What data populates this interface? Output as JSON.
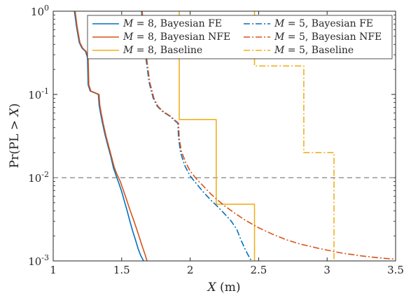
{
  "chart_data": {
    "type": "line",
    "xlabel": "X (m)",
    "ylabel": "Pr(PL > X)",
    "xlim": [
      1,
      3.5
    ],
    "ylim": [
      0.001,
      1
    ],
    "yscale": "log",
    "xticks": [
      1,
      1.5,
      2,
      2.5,
      3,
      3.5
    ],
    "xtick_labels": [
      "1",
      "1.5",
      "2",
      "2.5",
      "3",
      "3.5"
    ],
    "yticks": [
      0.001,
      0.01,
      0.1,
      1
    ],
    "ytick_labels": [
      {
        "base": "10",
        "exp": "-3"
      },
      {
        "base": "10",
        "exp": "-2"
      },
      {
        "base": "10",
        "exp": "-1"
      },
      {
        "base": "10",
        "exp": "0"
      }
    ],
    "reference_line": {
      "y": 0.01,
      "style": "dashed",
      "color": "#808080"
    },
    "legend": {
      "placement": "top-right",
      "columns": 2
    },
    "series": [
      {
        "name": "M = 8, Bayesian FE",
        "math": "M",
        "rest": " = 8, Bayesian FE",
        "color": "#0072BD",
        "dash": "solid",
        "x": [
          1.155,
          1.17,
          1.19,
          1.21,
          1.235,
          1.25,
          1.255,
          1.27,
          1.3,
          1.33,
          1.335,
          1.345,
          1.36,
          1.38,
          1.4,
          1.42,
          1.44,
          1.46,
          1.48,
          1.5,
          1.52,
          1.54,
          1.56,
          1.58,
          1.6,
          1.62,
          1.64,
          1.66
        ],
        "y": [
          1.0,
          0.65,
          0.42,
          0.36,
          0.33,
          0.28,
          0.13,
          0.11,
          0.105,
          0.1,
          0.075,
          0.06,
          0.045,
          0.032,
          0.024,
          0.018,
          0.013,
          0.0105,
          0.0085,
          0.0068,
          0.0052,
          0.004,
          0.003,
          0.0023,
          0.0018,
          0.0014,
          0.00115,
          0.001
        ]
      },
      {
        "name": "M = 8, Bayesian NFE",
        "math": "M",
        "rest": " = 8, Bayesian NFE",
        "color": "#D95319",
        "dash": "solid",
        "x": [
          1.16,
          1.175,
          1.195,
          1.215,
          1.24,
          1.255,
          1.26,
          1.275,
          1.305,
          1.335,
          1.34,
          1.35,
          1.365,
          1.385,
          1.405,
          1.425,
          1.445,
          1.465,
          1.49,
          1.51,
          1.53,
          1.55,
          1.57,
          1.59,
          1.61,
          1.63,
          1.65,
          1.67,
          1.685
        ],
        "y": [
          1.0,
          0.65,
          0.42,
          0.36,
          0.33,
          0.28,
          0.13,
          0.11,
          0.105,
          0.1,
          0.075,
          0.06,
          0.045,
          0.032,
          0.024,
          0.018,
          0.0135,
          0.011,
          0.009,
          0.0072,
          0.0058,
          0.0046,
          0.0037,
          0.003,
          0.0024,
          0.0019,
          0.0015,
          0.0012,
          0.001
        ]
      },
      {
        "name": "M = 8, Baseline",
        "math": "M",
        "rest": " = 8, Baseline",
        "color": "#EDB120",
        "dash": "solid",
        "x": [
          1.92,
          1.92,
          2.19,
          2.19,
          2.47,
          2.47
        ],
        "y": [
          1.0,
          0.05,
          0.05,
          0.0048,
          0.0048,
          0.001
        ]
      },
      {
        "name": "M = 5, Bayesian FE",
        "math": "M",
        "rest": " = 5, Bayesian FE",
        "color": "#0072BD",
        "dash": "dashdot",
        "x": [
          1.645,
          1.66,
          1.68,
          1.7,
          1.73,
          1.76,
          1.8,
          1.85,
          1.89,
          1.91,
          1.915,
          1.93,
          1.96,
          2.0,
          2.05,
          2.1,
          2.15,
          2.2,
          2.25,
          2.3,
          2.34,
          2.37,
          2.4,
          2.42,
          2.44,
          2.45
        ],
        "y": [
          1.0,
          0.5,
          0.25,
          0.14,
          0.09,
          0.072,
          0.062,
          0.055,
          0.048,
          0.045,
          0.03,
          0.02,
          0.014,
          0.0105,
          0.0083,
          0.0066,
          0.0054,
          0.0045,
          0.0037,
          0.003,
          0.0024,
          0.0018,
          0.0014,
          0.0012,
          0.00105,
          0.001
        ]
      },
      {
        "name": "M = 5, Bayesian NFE",
        "math": "M",
        "rest": " = 5, Bayesian NFE",
        "color": "#D95319",
        "dash": "dashdot",
        "x": [
          1.65,
          1.665,
          1.685,
          1.705,
          1.735,
          1.765,
          1.805,
          1.855,
          1.895,
          1.915,
          1.92,
          1.935,
          1.965,
          2.0,
          2.05,
          2.1,
          2.15,
          2.2,
          2.25,
          2.32,
          2.4,
          2.5,
          2.6,
          2.7,
          2.8,
          2.95,
          3.1,
          3.25,
          3.4,
          3.5
        ],
        "y": [
          1.0,
          0.5,
          0.25,
          0.14,
          0.09,
          0.072,
          0.062,
          0.055,
          0.048,
          0.045,
          0.03,
          0.021,
          0.0155,
          0.012,
          0.0095,
          0.0078,
          0.0064,
          0.0054,
          0.0046,
          0.0038,
          0.0031,
          0.0025,
          0.0021,
          0.0018,
          0.0016,
          0.0014,
          0.00125,
          0.00115,
          0.00108,
          0.00105
        ]
      },
      {
        "name": "M = 5, Baseline",
        "math": "M",
        "rest": " = 5, Baseline",
        "color": "#EDB120",
        "dash": "dashdot",
        "x": [
          2.47,
          2.47,
          2.83,
          2.83,
          3.05,
          3.05
        ],
        "y": [
          1.0,
          0.22,
          0.22,
          0.02,
          0.02,
          0.001
        ]
      }
    ]
  }
}
